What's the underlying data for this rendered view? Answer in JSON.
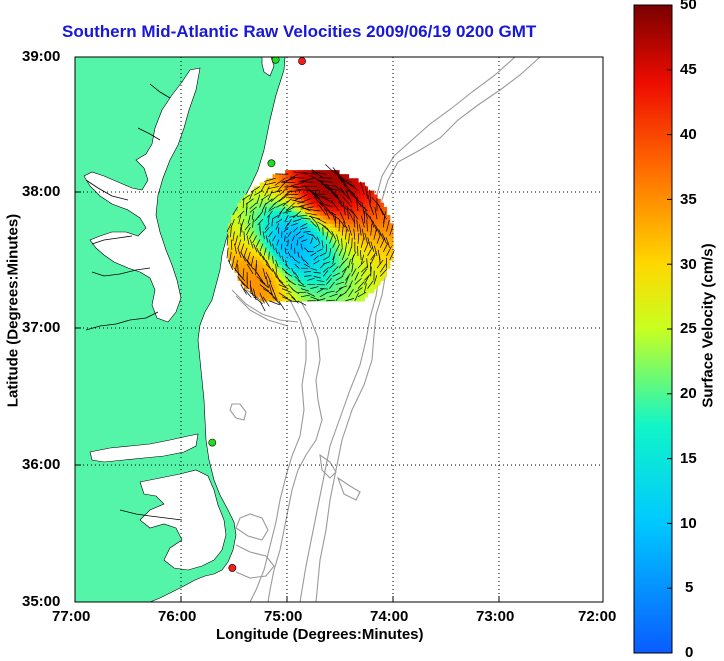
{
  "title": "Southern Mid-Atlantic Raw Velocities 2009/06/19 0200 GMT",
  "xaxis": {
    "label": "Longitude (Degrees:Minutes)",
    "ticks": [
      "77:00",
      "76:00",
      "75:00",
      "74:00",
      "73:00",
      "72:00"
    ],
    "range": [
      -77,
      -72
    ]
  },
  "yaxis": {
    "label": "Latitude (Degrees:Minutes)",
    "ticks": [
      "39:00",
      "38:00",
      "37:00",
      "36:00",
      "35:00"
    ],
    "range": [
      35,
      39
    ]
  },
  "colorbar": {
    "label": "Surface Velocity (cm/s)",
    "ticks": [
      "50",
      "45",
      "40",
      "35",
      "30",
      "25",
      "20",
      "15",
      "10",
      "5",
      "0"
    ],
    "range": [
      0,
      50
    ]
  },
  "colors": {
    "land": "#55f5a9",
    "title": "#1818d8",
    "grid": "#000000",
    "bathymetry": "#9a9a9a",
    "station_green": "#22dd22",
    "station_red": "#ff1a1a"
  },
  "stations": [
    {
      "lon": -74.85,
      "lat": 38.97,
      "color": "red"
    },
    {
      "lon": -75.1,
      "lat": 38.98,
      "color": "green"
    },
    {
      "lon": -75.14,
      "lat": 38.22,
      "color": "green"
    },
    {
      "lon": -75.7,
      "lat": 36.17,
      "color": "green"
    },
    {
      "lon": -75.51,
      "lat": 35.25,
      "color": "red"
    }
  ],
  "chart_data": {
    "type": "vector-field",
    "field_center": {
      "lon": -74.78,
      "lat": 37.63
    },
    "field_extent": {
      "lon": [
        -75.55,
        -73.97
      ],
      "lat": [
        37.21,
        38.29
      ]
    },
    "speed_range": [
      0,
      50
    ],
    "regions": [
      {
        "name": "high speed north",
        "lon": -74.65,
        "lat": 38.05,
        "speed": 48
      },
      {
        "name": "slow core",
        "lon": -74.95,
        "lat": 37.62,
        "speed": 8
      },
      {
        "name": "moderate south",
        "lon": -75.3,
        "lat": 37.35,
        "speed": 35
      }
    ]
  }
}
